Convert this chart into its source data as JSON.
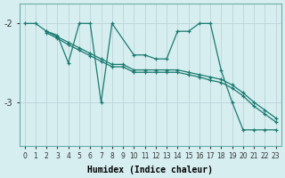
{
  "xlabel": "Humidex (Indice chaleur)",
  "background_color": "#d6eef0",
  "grid_color": "#c0d8dc",
  "line_color": "#1a7a6e",
  "xlim": [
    -0.5,
    23.5
  ],
  "ylim": [
    -3.55,
    -1.75
  ],
  "yticks": [
    -3,
    -2
  ],
  "xticks": [
    0,
    1,
    2,
    3,
    4,
    5,
    6,
    7,
    8,
    9,
    10,
    11,
    12,
    13,
    14,
    15,
    16,
    17,
    18,
    19,
    20,
    21,
    22,
    23
  ],
  "zigzag_x": [
    0,
    1,
    2,
    3,
    4,
    5,
    6,
    7,
    8,
    10,
    11,
    12,
    13,
    14,
    15,
    16,
    17,
    18,
    19,
    20,
    21,
    22,
    23
  ],
  "zigzag_y": [
    -2.0,
    -2.0,
    -2.1,
    -2.15,
    -2.5,
    -2.0,
    -2.0,
    -3.0,
    -2.0,
    -2.4,
    -2.4,
    -2.45,
    -2.45,
    -2.1,
    -2.1,
    -2.0,
    -2.0,
    -2.6,
    -3.0,
    -3.35,
    -3.35,
    -3.35,
    -3.35
  ],
  "trend1_x": [
    2,
    3,
    4,
    5,
    6,
    7,
    8,
    9,
    10,
    11,
    12,
    13,
    14,
    15,
    16,
    17,
    18,
    19,
    20,
    21,
    22,
    23
  ],
  "trend1_y": [
    -2.1,
    -2.17,
    -2.24,
    -2.31,
    -2.38,
    -2.45,
    -2.52,
    -2.52,
    -2.59,
    -2.59,
    -2.59,
    -2.59,
    -2.59,
    -2.62,
    -2.65,
    -2.68,
    -2.71,
    -2.78,
    -2.88,
    -3.0,
    -3.1,
    -3.2
  ],
  "trend2_x": [
    2,
    3,
    4,
    5,
    6,
    7,
    8,
    9,
    10,
    11,
    12,
    13,
    14,
    15,
    16,
    17,
    18,
    19,
    20,
    21,
    22,
    23
  ],
  "trend2_y": [
    -2.12,
    -2.19,
    -2.27,
    -2.34,
    -2.41,
    -2.48,
    -2.55,
    -2.55,
    -2.62,
    -2.62,
    -2.62,
    -2.62,
    -2.62,
    -2.65,
    -2.68,
    -2.72,
    -2.75,
    -2.82,
    -2.92,
    -3.05,
    -3.15,
    -3.25
  ]
}
